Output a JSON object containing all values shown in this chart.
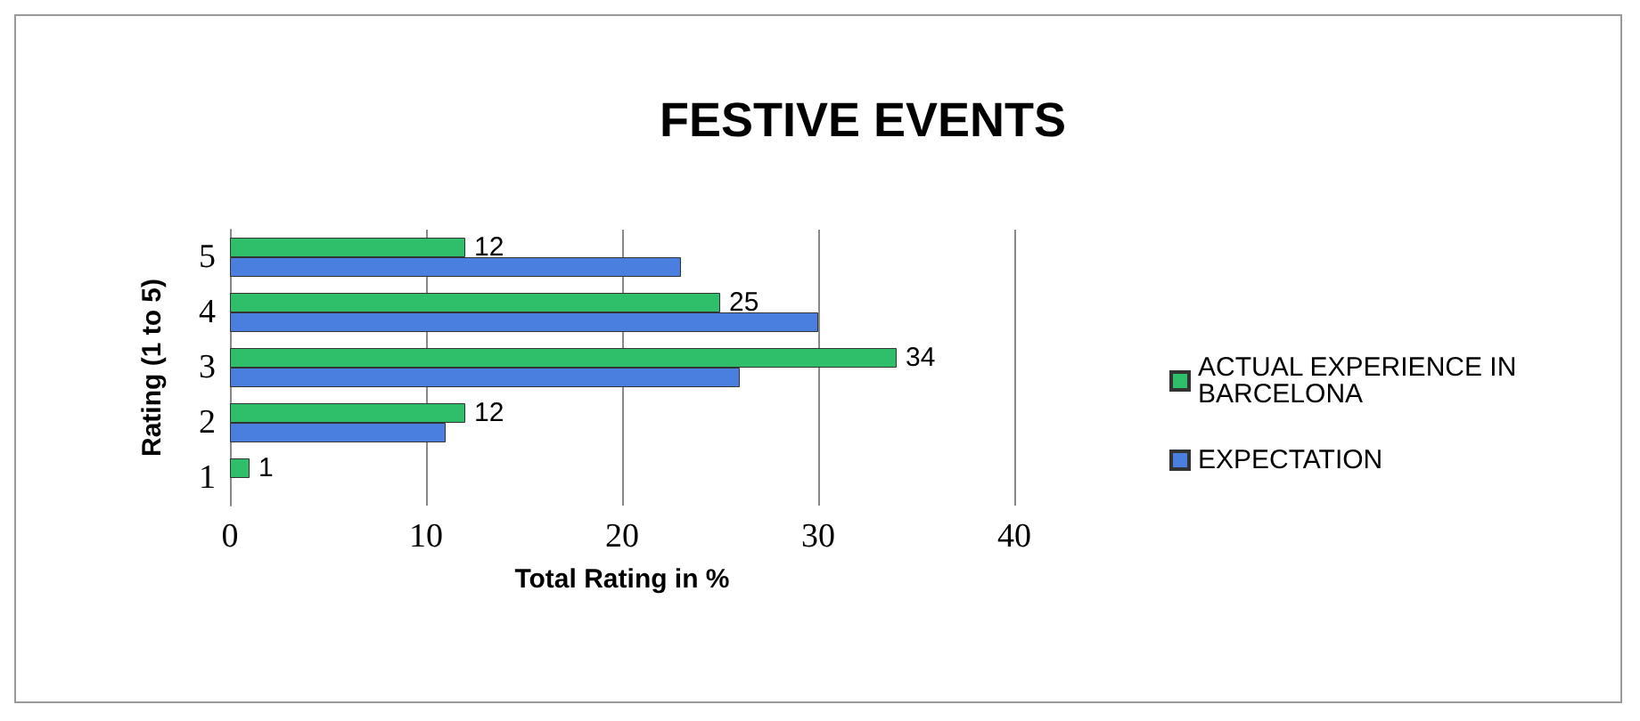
{
  "chart_data": {
    "type": "bar",
    "orientation": "horizontal",
    "title": "FESTIVE EVENTS",
    "xlabel": "Total Rating in %",
    "ylabel": "Rating (1 to 5)",
    "categories": [
      "5",
      "4",
      "3",
      "2",
      "1"
    ],
    "series": [
      {
        "name": "ACTUAL EXPERIENCE IN BARCELONA",
        "color": "#2fbf6a",
        "values": [
          12,
          25,
          34,
          12,
          1
        ],
        "value_labels": [
          "12",
          "25",
          "34",
          "12",
          "1"
        ]
      },
      {
        "name": "EXPECTATION",
        "color": "#4a7fe0",
        "values": [
          23,
          30,
          26,
          11,
          null
        ]
      }
    ],
    "xlim": [
      0,
      40
    ],
    "xticks": [
      0,
      10,
      20,
      30,
      40
    ],
    "grid": "x",
    "legend": "right"
  }
}
